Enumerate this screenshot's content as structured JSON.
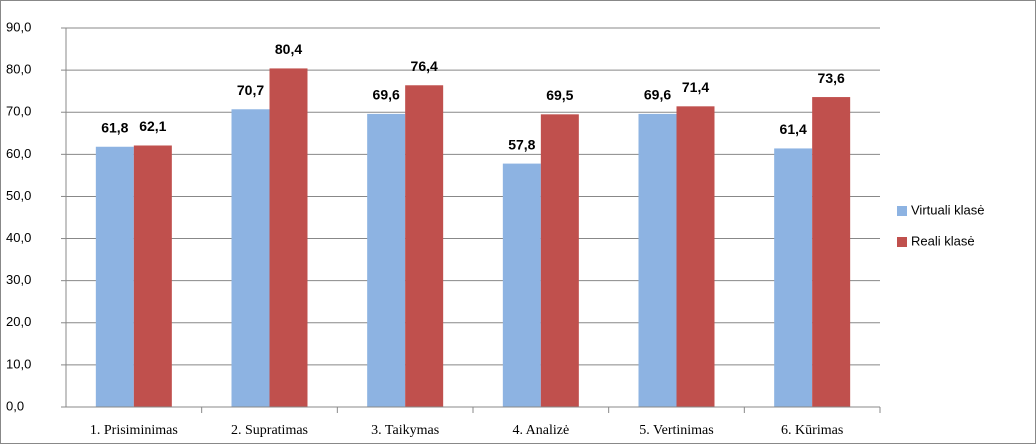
{
  "chart_data": {
    "type": "bar",
    "categories": [
      "1. Prisiminimas",
      "2. Supratimas",
      "3. Taikymas",
      "4. Analizė",
      "5. Vertinimas",
      "6. Kūrimas"
    ],
    "series": [
      {
        "name": "Virtuali klasė",
        "color": "#8db3e2",
        "values": [
          61.8,
          70.7,
          69.6,
          57.8,
          69.6,
          61.4
        ],
        "value_labels": [
          "61,8",
          "70,7",
          "69,6",
          "57,8",
          "69,6",
          "61,4"
        ]
      },
      {
        "name": "Reali klasė",
        "color": "#c0504d",
        "values": [
          62.1,
          80.4,
          76.4,
          69.5,
          71.4,
          73.6
        ],
        "value_labels": [
          "62,1",
          "80,4",
          "76,4",
          "69,5",
          "71,4",
          "73,6"
        ]
      }
    ],
    "ylim": [
      0,
      90
    ],
    "yticks": [
      {
        "value": 0,
        "label": "0,0"
      },
      {
        "value": 10,
        "label": "10,0"
      },
      {
        "value": 20,
        "label": "20,0"
      },
      {
        "value": 30,
        "label": "30,0"
      },
      {
        "value": 40,
        "label": "40,0"
      },
      {
        "value": 50,
        "label": "50,0"
      },
      {
        "value": 60,
        "label": "60,0"
      },
      {
        "value": 70,
        "label": "70,0"
      },
      {
        "value": 80,
        "label": "80,0"
      },
      {
        "value": 90,
        "label": "90,0"
      }
    ],
    "grid": true,
    "legend": "right"
  }
}
